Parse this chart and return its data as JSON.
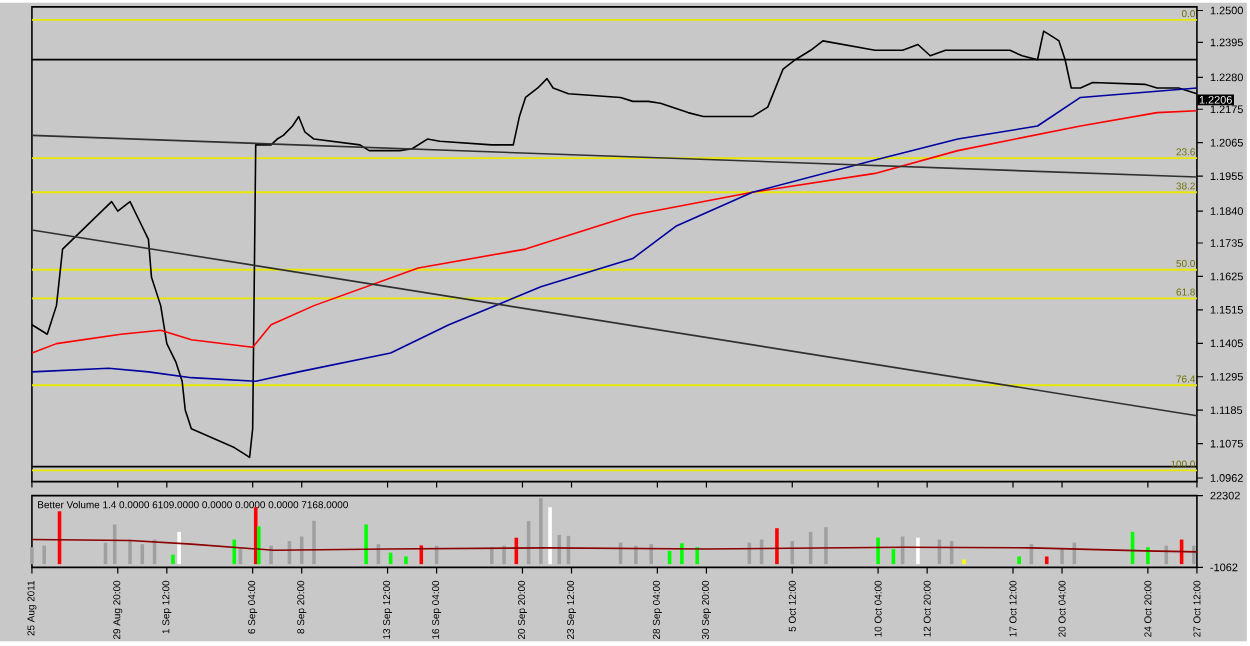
{
  "chart_data": [
    {
      "type": "line",
      "tick_labels": "y",
      "xlim": [
        "2011-08-25T04:00",
        "2011-10-27T12:00"
      ],
      "ylim": [
        1.095,
        1.2512
      ],
      "xticks": [
        {
          "value": "2011-08-25T04:00",
          "label": null
        },
        {
          "value": "2011-08-29T20:00",
          "label": null
        },
        {
          "value": "2011-09-01T12:00",
          "label": null
        },
        {
          "value": "2011-09-06T04:00",
          "label": null
        },
        {
          "value": "2011-09-08T20:00",
          "label": null
        },
        {
          "value": "2011-09-13T12:00",
          "label": null
        },
        {
          "value": "2011-09-16T04:00",
          "label": null
        },
        {
          "value": "2011-09-20T20:00",
          "label": null
        },
        {
          "value": "2011-09-23T12:00",
          "label": null
        },
        {
          "value": "2011-09-28T04:00",
          "label": null
        },
        {
          "value": "2011-09-30T20:00",
          "label": null
        },
        {
          "value": "2011-10-05T12:00",
          "label": null
        },
        {
          "value": "2011-10-10T04:00",
          "label": null
        },
        {
          "value": "2011-10-12T20:00",
          "label": null
        },
        {
          "value": "2011-10-17T12:00",
          "label": null
        },
        {
          "value": "2011-10-20T04:00",
          "label": null
        },
        {
          "value": "2011-10-24T20:00",
          "label": null
        },
        {
          "value": "2011-10-27T12:00",
          "label": null
        }
      ],
      "yticks": [
        {
          "value": 1.25,
          "label": "1.2500"
        },
        {
          "value": 1.2395,
          "label": "1.2395"
        },
        {
          "value": 1.228,
          "label": "1.2280"
        },
        {
          "value": 1.2175,
          "label": "1.2175"
        },
        {
          "value": 1.2065,
          "label": "1.2065"
        },
        {
          "value": 1.1955,
          "label": "1.1955"
        },
        {
          "value": 1.184,
          "label": "1.1840"
        },
        {
          "value": 1.1735,
          "label": "1.1735"
        },
        {
          "value": 1.1625,
          "label": "1.1625"
        },
        {
          "value": 1.1515,
          "label": "1.1515"
        },
        {
          "value": 1.1405,
          "label": "1.1405"
        },
        {
          "value": 1.1295,
          "label": "1.1295"
        },
        {
          "value": 1.1185,
          "label": "1.1185"
        },
        {
          "value": 1.1075,
          "label": "1.1075"
        },
        {
          "value": 1.0962,
          "label": "1.0962"
        }
      ],
      "series": [
        {
          "color": "#000000",
          "x": [
            "2011-08-25T04:00",
            "2011-08-26T00:00",
            "2011-08-26T12:00",
            "2011-08-26T20:00",
            "2011-08-29T12:00",
            "2011-08-29T20:00",
            "2011-08-30T12:00",
            "2011-08-31T00:00",
            "2011-08-31T12:00",
            "2011-08-31T16:00",
            "2011-09-01T04:00",
            "2011-09-01T12:00",
            "2011-09-02T00:00",
            "2011-09-02T08:00",
            "2011-09-02T12:00",
            "2011-09-02T20:00",
            "2011-09-05T04:00",
            "2011-09-05T16:00",
            "2011-09-06T00:00",
            "2011-09-06T04:00",
            "2011-09-06T08:00",
            "2011-09-06T20:00",
            "2011-09-07T04:00",
            "2011-09-07T12:00",
            "2011-09-07T20:00",
            "2011-09-08T08:00",
            "2011-09-08T16:00",
            "2011-09-09T00:00",
            "2011-09-09T12:00",
            "2011-09-12T00:00",
            "2011-09-12T12:00",
            "2011-09-13T08:00",
            "2011-09-14T04:00",
            "2011-09-14T20:00",
            "2011-09-15T16:00",
            "2011-09-16T08:00",
            "2011-09-19T04:00",
            "2011-09-20T08:00",
            "2011-09-20T16:00",
            "2011-09-21T00:00",
            "2011-09-21T16:00",
            "2011-09-22T04:00",
            "2011-09-22T12:00",
            "2011-09-23T08:00",
            "2011-09-26T04:00",
            "2011-09-26T20:00",
            "2011-09-27T16:00",
            "2011-09-28T08:00",
            "2011-09-29T20:00",
            "2011-09-30T16:00",
            "2011-10-03T08:00",
            "2011-10-04T04:00",
            "2011-10-05T00:00",
            "2011-10-05T16:00",
            "2011-10-06T12:00",
            "2011-10-07T04:00",
            "2011-10-10T00:00",
            "2011-10-10T16:00",
            "2011-10-11T12:00",
            "2011-10-12T08:00",
            "2011-10-13T00:00",
            "2011-10-13T20:00",
            "2011-10-14T12:00",
            "2011-10-17T08:00",
            "2011-10-18T00:00",
            "2011-10-18T20:00",
            "2011-10-19T04:00",
            "2011-10-19T16:00",
            "2011-10-20T00:00",
            "2011-10-20T08:00",
            "2011-10-20T16:00",
            "2011-10-21T04:00",
            "2011-10-21T20:00",
            "2011-10-24T16:00",
            "2011-10-25T08:00",
            "2011-10-26T12:00",
            "2011-10-27T12:00"
          ],
          "values": [
            1.1466,
            1.1435,
            1.1529,
            1.1715,
            1.1871,
            1.184,
            1.1871,
            1.1809,
            1.1747,
            1.1622,
            1.1529,
            1.1404,
            1.1342,
            1.128,
            1.1186,
            1.1124,
            1.1062,
            1.1043,
            1.103,
            1.1124,
            1.2058,
            1.2058,
            1.2058,
            1.2077,
            1.2089,
            1.212,
            1.2151,
            1.2101,
            1.2077,
            1.2058,
            1.2039,
            1.2039,
            1.2039,
            1.2045,
            1.2077,
            1.207,
            1.2058,
            1.2058,
            1.2151,
            1.2214,
            1.2245,
            1.2276,
            1.2245,
            1.2226,
            1.2214,
            1.2201,
            1.2201,
            1.2195,
            1.2164,
            1.2151,
            1.2151,
            1.2182,
            1.2307,
            1.2338,
            1.2369,
            1.24,
            1.2369,
            1.2369,
            1.2369,
            1.2388,
            1.2351,
            1.2369,
            1.2369,
            1.2369,
            1.2351,
            1.2338,
            1.2432,
            1.2413,
            1.24,
            1.2338,
            1.2245,
            1.2245,
            1.2263,
            1.2257,
            1.2245,
            1.2245,
            1.2226
          ]
        },
        {
          "color": "#ff0000",
          "x": [
            "2011-08-25T04:00",
            "2011-08-26T12:00",
            "2011-08-30T00:00",
            "2011-09-01T04:00",
            "2011-09-02T20:00",
            "2011-09-06T04:00",
            "2011-09-07T04:00",
            "2011-09-09T12:00",
            "2011-09-15T04:00",
            "2011-09-21T00:00",
            "2011-09-26T20:00",
            "2011-10-03T08:00",
            "2011-10-10T00:00",
            "2011-10-14T12:00",
            "2011-10-21T04:00",
            "2011-10-25T08:00",
            "2011-10-27T12:00"
          ],
          "values": [
            1.1373,
            1.1404,
            1.1435,
            1.1448,
            1.1417,
            1.1392,
            1.1466,
            1.1529,
            1.1653,
            1.1715,
            1.1827,
            1.1902,
            1.1964,
            1.2039,
            1.212,
            1.2164,
            1.217
          ]
        },
        {
          "color": "#0000a0",
          "x": [
            "2011-08-25T04:00",
            "2011-08-29T08:00",
            "2011-08-31T12:00",
            "2011-09-02T20:00",
            "2011-09-06T08:00",
            "2011-09-08T16:00",
            "2011-09-13T16:00",
            "2011-09-16T20:00",
            "2011-09-21T20:00",
            "2011-09-26T20:00",
            "2011-09-29T04:00",
            "2011-10-03T08:00",
            "2011-10-10T00:00",
            "2011-10-14T12:00",
            "2011-10-18T20:00",
            "2011-10-21T04:00",
            "2011-10-27T12:00"
          ],
          "values": [
            1.1311,
            1.1323,
            1.1311,
            1.1292,
            1.128,
            1.1311,
            1.1373,
            1.1466,
            1.1591,
            1.1684,
            1.179,
            1.1902,
            1.2008,
            1.2077,
            1.212,
            1.2214,
            1.2245
          ]
        },
        {
          "color": "#303030",
          "x": [
            "2011-08-25T04:00",
            "2011-10-27T12:00"
          ],
          "values": [
            1.1778,
            1.1167
          ]
        },
        {
          "color": "#303030",
          "x": [
            "2011-08-25T04:00",
            "2011-10-27T12:00"
          ],
          "values": [
            1.2089,
            1.1952
          ]
        }
      ],
      "ref_lines": [
        {
          "axis": "y",
          "value": 1.2338,
          "color": "#000000"
        },
        {
          "axis": "y",
          "value": 1.0999,
          "color": "#000000"
        },
        {
          "axis": "y",
          "value": 1.2469,
          "color": "#e8e800"
        },
        {
          "axis": "y",
          "value": 1.2014,
          "color": "#e8e800"
        },
        {
          "axis": "y",
          "value": 1.1902,
          "color": "#e8e800"
        },
        {
          "axis": "y",
          "value": 1.1647,
          "color": "#e8e800"
        },
        {
          "axis": "y",
          "value": 1.1553,
          "color": "#e8e800"
        },
        {
          "axis": "y",
          "value": 1.1267,
          "color": "#e8e800"
        },
        {
          "axis": "y",
          "value": 1.0987,
          "color": "#e8e800"
        }
      ],
      "annotations": [
        {
          "text": "1.2206",
          "x": "2011-10-27T12:00",
          "y": 1.2206
        },
        "0.0",
        "23.6",
        "38.2",
        "50.0",
        "61.8",
        "76.4",
        "100.0"
      ]
    },
    {
      "type": "bar",
      "title": "Better Volume 1.4 0.0000 6109.0000 0.0000 0.0000 0.0000 7168.0000",
      "xlim": [
        "2011-08-25T04:00",
        "2011-10-27T12:00"
      ],
      "ylim": [
        -1062,
        22302
      ],
      "xticks": [
        {
          "value": "2011-08-25T04:00",
          "label": "25 Aug 2011"
        },
        {
          "value": "2011-08-29T20:00",
          "label": "29 Aug 20:00"
        },
        {
          "value": "2011-09-01T12:00",
          "label": "1 Sep 12:00"
        },
        {
          "value": "2011-09-06T04:00",
          "label": "6 Sep 04:00"
        },
        {
          "value": "2011-09-08T20:00",
          "label": "8 Sep 20:00"
        },
        {
          "value": "2011-09-13T12:00",
          "label": "13 Sep 12:00"
        },
        {
          "value": "2011-09-16T04:00",
          "label": "16 Sep 04:00"
        },
        {
          "value": "2011-09-20T20:00",
          "label": "20 Sep 20:00"
        },
        {
          "value": "2011-09-23T12:00",
          "label": "23 Sep 12:00"
        },
        {
          "value": "2011-09-28T04:00",
          "label": "28 Sep 04:00"
        },
        {
          "value": "2011-09-30T20:00",
          "label": "30 Sep 20:00"
        },
        {
          "value": "2011-10-05T12:00",
          "label": "5 Oct 12:00"
        },
        {
          "value": "2011-10-10T04:00",
          "label": "10 Oct 04:00"
        },
        {
          "value": "2011-10-12T20:00",
          "label": "12 Oct 20:00"
        },
        {
          "value": "2011-10-17T12:00",
          "label": "17 Oct 12:00"
        },
        {
          "value": "2011-10-20T04:00",
          "label": "20 Oct 04:00"
        },
        {
          "value": "2011-10-24T20:00",
          "label": "24 Oct 20:00"
        },
        {
          "value": "2011-10-27T12:00",
          "label": "27 Oct 12:00"
        }
      ],
      "yticks": [
        -1062,
        22302
      ],
      "series": [
        {
          "type": "bar",
          "x": [
            "2011-08-25T04:00",
            "2011-08-25T20:00",
            "2011-08-26T16:00",
            "2011-08-29T04:00",
            "2011-08-29T16:00",
            "2011-08-30T12:00",
            "2011-08-31T04:00",
            "2011-08-31T20:00",
            "2011-09-01T20:00",
            "2011-09-02T04:00",
            "2011-09-05T04:00",
            "2011-09-05T12:00",
            "2011-09-06T08:00",
            "2011-09-06T12:00",
            "2011-09-07T04:00",
            "2011-09-08T04:00",
            "2011-09-08T20:00",
            "2011-09-09T12:00",
            "2011-09-12T08:00",
            "2011-09-13T00:00",
            "2011-09-13T16:00",
            "2011-09-14T12:00",
            "2011-09-15T08:00",
            "2011-09-16T04:00",
            "2011-09-19T04:00",
            "2011-09-19T20:00",
            "2011-09-20T12:00",
            "2011-09-21T04:00",
            "2011-09-21T20:00",
            "2011-09-22T08:00",
            "2011-09-22T20:00",
            "2011-09-23T08:00",
            "2011-09-26T04:00",
            "2011-09-27T00:00",
            "2011-09-27T20:00",
            "2011-09-28T20:00",
            "2011-09-29T12:00",
            "2011-09-30T08:00",
            "2011-10-03T04:00",
            "2011-10-03T20:00",
            "2011-10-04T16:00",
            "2011-10-05T12:00",
            "2011-10-06T12:00",
            "2011-10-07T08:00",
            "2011-10-10T04:00",
            "2011-10-11T00:00",
            "2011-10-11T12:00",
            "2011-10-12T08:00",
            "2011-10-13T12:00",
            "2011-10-14T04:00",
            "2011-10-14T20:00",
            "2011-10-17T20:00",
            "2011-10-18T12:00",
            "2011-10-19T08:00",
            "2011-10-20T04:00",
            "2011-10-20T20:00",
            "2011-10-24T00:00",
            "2011-10-24T20:00",
            "2011-10-25T20:00",
            "2011-10-26T16:00",
            "2011-10-27T08:00"
          ],
          "values": [
            5500,
            6000,
            17200,
            7000,
            12900,
            8000,
            6500,
            8000,
            3100,
            10500,
            8000,
            5000,
            18500,
            12300,
            6000,
            7500,
            9000,
            14100,
            12900,
            6500,
            3700,
            2500,
            6100,
            6000,
            5500,
            6000,
            8600,
            14000,
            21500,
            18500,
            9500,
            9200,
            7000,
            6000,
            6500,
            4300,
            6800,
            5500,
            7000,
            8000,
            11700,
            7500,
            10500,
            12000,
            8600,
            4900,
            9000,
            8600,
            8000,
            7500,
            1500,
            2500,
            6500,
            2500,
            5000,
            7000,
            10500,
            5500,
            6000,
            8000,
            6000
          ],
          "colors": [
            "#a0a0a0",
            "#a0a0a0",
            "#ff0000",
            "#a0a0a0",
            "#a0a0a0",
            "#a0a0a0",
            "#a0a0a0",
            "#a0a0a0",
            "#00ff00",
            "#ffffff",
            "#00ff00",
            "#a0a0a0",
            "#ff0000",
            "#00ff00",
            "#a0a0a0",
            "#a0a0a0",
            "#a0a0a0",
            "#a0a0a0",
            "#00ff00",
            "#a0a0a0",
            "#00ff00",
            "#00ff00",
            "#ff0000",
            "#a0a0a0",
            "#a0a0a0",
            "#a0a0a0",
            "#ff0000",
            "#a0a0a0",
            "#a0a0a0",
            "#ffffff",
            "#a0a0a0",
            "#a0a0a0",
            "#a0a0a0",
            "#a0a0a0",
            "#a0a0a0",
            "#00ff00",
            "#00ff00",
            "#00ff00",
            "#a0a0a0",
            "#a0a0a0",
            "#ff0000",
            "#a0a0a0",
            "#a0a0a0",
            "#a0a0a0",
            "#00ff00",
            "#00ff00",
            "#a0a0a0",
            "#ffffff",
            "#a0a0a0",
            "#a0a0a0",
            "#ffff00",
            "#00ff00",
            "#a0a0a0",
            "#ff0000",
            "#a0a0a0",
            "#a0a0a0",
            "#00ff00",
            "#00ff00",
            "#a0a0a0",
            "#ff0000",
            "#a0a0a0"
          ]
        },
        {
          "type": "line",
          "color": "#8b0000",
          "x": [
            "2011-08-25T04:00",
            "2011-08-30T12:00",
            "2011-09-02T20:00",
            "2011-09-07T08:00",
            "2011-09-13T12:00",
            "2011-09-22T04:00",
            "2011-09-30T20:00",
            "2011-10-11T12:00",
            "2011-10-18T12:00",
            "2011-10-24T16:00",
            "2011-10-27T12:00"
          ],
          "values": [
            8000,
            7700,
            6500,
            4500,
            4900,
            5300,
            4900,
            5500,
            5300,
            4300,
            4000
          ]
        }
      ]
    }
  ]
}
